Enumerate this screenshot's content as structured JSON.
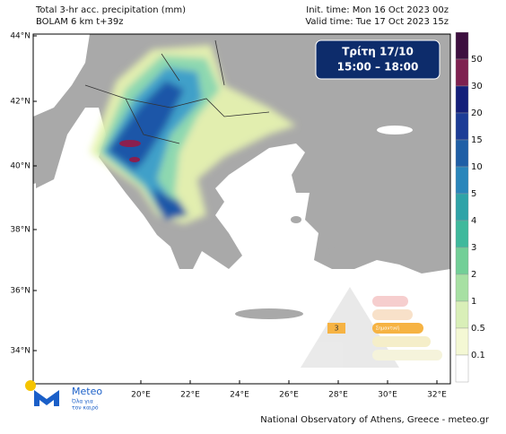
{
  "header": {
    "title": "Total 3-hr acc. precipitation (mm)",
    "model": "BOLAM 6 km t+39z",
    "init_time": "Init. time: Mon 16 Oct 2023 00z",
    "valid_time": "Valid time: Tue 17 Oct 2023 15z"
  },
  "banner": {
    "day": "Τρίτη 17/10",
    "hours": "15:00 – 18:00"
  },
  "map": {
    "lat_labels": [
      "44°N",
      "42°N",
      "40°N",
      "38°N",
      "36°N",
      "34°N"
    ],
    "lon_labels": [
      "20°E",
      "22°E",
      "24°E",
      "26°E",
      "28°E",
      "30°E",
      "32°E"
    ]
  },
  "colorbar": {
    "labels": [
      "50",
      "30",
      "20",
      "15",
      "10",
      "5",
      "4",
      "3",
      "2",
      "1",
      "0.5",
      "0.1"
    ]
  },
  "logo": {
    "name": "Meteo",
    "slogan_1": "Όλα για",
    "slogan_2": "τον καιρό"
  },
  "warning": {
    "level": "3",
    "label": "Σημαντική"
  },
  "footer": {
    "credit": "National Observatory of Athens, Greece - meteo.gr"
  }
}
